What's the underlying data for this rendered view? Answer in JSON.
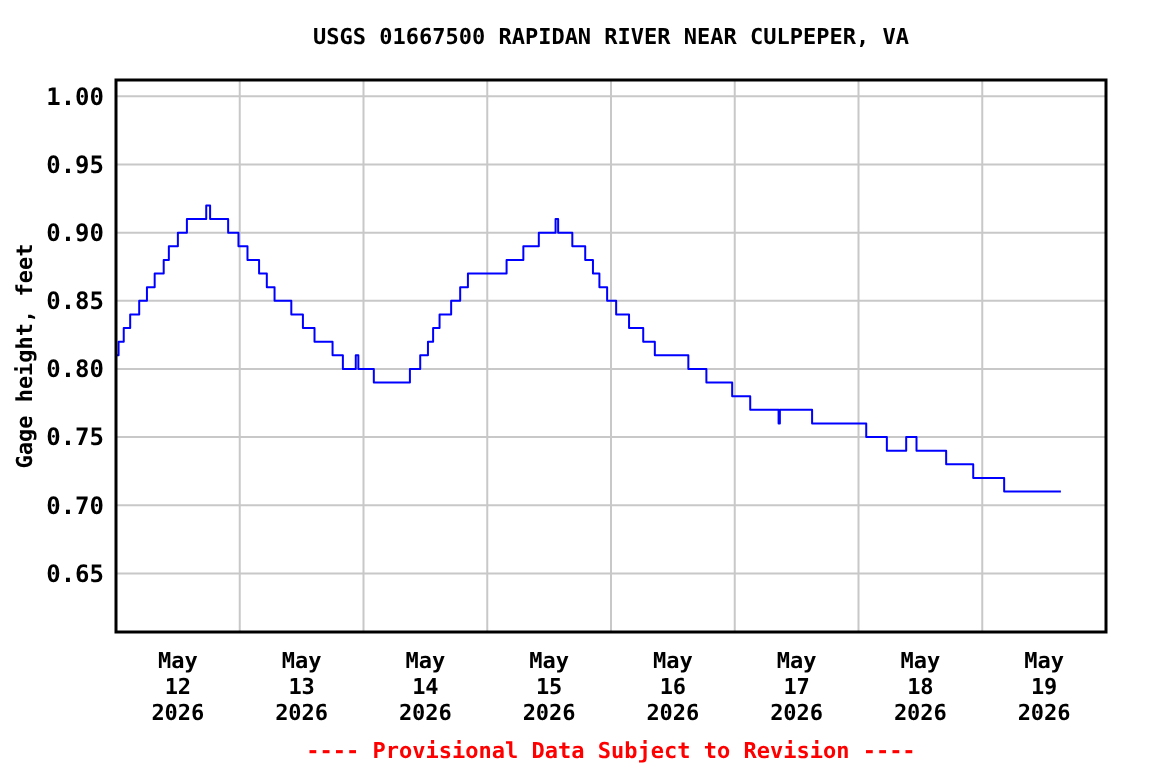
{
  "chart_data": {
    "type": "step",
    "title": "USGS 01667500 RAPIDAN RIVER NEAR CULPEPER, VA",
    "ylabel": "Gage height, feet",
    "annotations": [
      "---- Provisional Data Subject to Revision ----"
    ],
    "series": [
      {
        "color": "#0000ff",
        "x": [
          "2026-05-12T00:00",
          "2026-05-12T00:30",
          "2026-05-12T01:30",
          "2026-05-12T02:45",
          "2026-05-12T04:30",
          "2026-05-12T06:00",
          "2026-05-12T07:30",
          "2026-05-12T09:15",
          "2026-05-12T10:15",
          "2026-05-12T12:00",
          "2026-05-12T13:45",
          "2026-05-12T17:30",
          "2026-05-12T18:15",
          "2026-05-12T21:45",
          "2026-05-12T23:45",
          "2026-05-13T01:30",
          "2026-05-13T03:45",
          "2026-05-13T05:15",
          "2026-05-13T06:45",
          "2026-05-13T10:00",
          "2026-05-13T12:15",
          "2026-05-13T14:30",
          "2026-05-13T18:00",
          "2026-05-13T20:00",
          "2026-05-13T22:30",
          "2026-05-13T23:00",
          "2026-05-14T02:00",
          "2026-05-14T09:00",
          "2026-05-14T11:00",
          "2026-05-14T12:30",
          "2026-05-14T13:30",
          "2026-05-14T14:45",
          "2026-05-14T17:00",
          "2026-05-14T18:45",
          "2026-05-14T20:15",
          "2026-05-15T03:45",
          "2026-05-15T07:00",
          "2026-05-15T10:00",
          "2026-05-15T13:15",
          "2026-05-15T13:45",
          "2026-05-15T16:30",
          "2026-05-15T19:00",
          "2026-05-15T20:30",
          "2026-05-15T21:45",
          "2026-05-15T23:15",
          "2026-05-16T01:00",
          "2026-05-16T03:30",
          "2026-05-16T06:15",
          "2026-05-16T08:30",
          "2026-05-16T15:00",
          "2026-05-16T18:30",
          "2026-05-16T23:30",
          "2026-05-17T03:00",
          "2026-05-17T08:30",
          "2026-05-17T08:45",
          "2026-05-17T15:00",
          "2026-05-18T01:30",
          "2026-05-18T05:30",
          "2026-05-18T09:15",
          "2026-05-18T11:15",
          "2026-05-18T17:00",
          "2026-05-18T22:15",
          "2026-05-19T04:15",
          "2026-05-19T15:15"
        ],
        "values": [
          0.81,
          0.82,
          0.83,
          0.84,
          0.85,
          0.86,
          0.87,
          0.88,
          0.89,
          0.9,
          0.91,
          0.92,
          0.91,
          0.9,
          0.89,
          0.88,
          0.87,
          0.86,
          0.85,
          0.84,
          0.83,
          0.82,
          0.81,
          0.8,
          0.81,
          0.8,
          0.79,
          0.8,
          0.81,
          0.82,
          0.83,
          0.84,
          0.85,
          0.86,
          0.87,
          0.88,
          0.89,
          0.9,
          0.91,
          0.9,
          0.89,
          0.88,
          0.87,
          0.86,
          0.85,
          0.84,
          0.83,
          0.82,
          0.81,
          0.8,
          0.79,
          0.78,
          0.77,
          0.76,
          0.77,
          0.76,
          0.75,
          0.74,
          0.75,
          0.74,
          0.73,
          0.72,
          0.71,
          0.71
        ]
      }
    ],
    "xlim": [
      "2026-05-12T00:00",
      "2026-05-20T00:00"
    ],
    "xticks": [
      {
        "value": "2026-05-12T12:00",
        "label": "May\n12\n2026"
      },
      {
        "value": "2026-05-13T00:00",
        "label": null
      },
      {
        "value": "2026-05-13T12:00",
        "label": "May\n13\n2026"
      },
      {
        "value": "2026-05-14T00:00",
        "label": null
      },
      {
        "value": "2026-05-14T12:00",
        "label": "May\n14\n2026"
      },
      {
        "value": "2026-05-15T00:00",
        "label": null
      },
      {
        "value": "2026-05-15T12:00",
        "label": "May\n15\n2026"
      },
      {
        "value": "2026-05-16T00:00",
        "label": null
      },
      {
        "value": "2026-05-16T12:00",
        "label": "May\n16\n2026"
      },
      {
        "value": "2026-05-17T00:00",
        "label": null
      },
      {
        "value": "2026-05-17T12:00",
        "label": "May\n17\n2026"
      },
      {
        "value": "2026-05-18T00:00",
        "label": null
      },
      {
        "value": "2026-05-18T12:00",
        "label": "May\n18\n2026"
      },
      {
        "value": "2026-05-19T00:00",
        "label": null
      },
      {
        "value": "2026-05-19T12:00",
        "label": "May\n19\n2026"
      }
    ],
    "ylim": [
      0.607,
      1.012
    ],
    "yticks": [
      {
        "value": 0.65,
        "label": "0.65"
      },
      {
        "value": 0.7,
        "label": "0.70"
      },
      {
        "value": 0.75,
        "label": "0.75"
      },
      {
        "value": 0.8,
        "label": "0.80"
      },
      {
        "value": 0.85,
        "label": "0.85"
      },
      {
        "value": 0.9,
        "label": "0.90"
      },
      {
        "value": 0.95,
        "label": "0.95"
      },
      {
        "value": 1,
        "label": "1.00"
      }
    ],
    "grid": true,
    "line_style": "solid"
  }
}
